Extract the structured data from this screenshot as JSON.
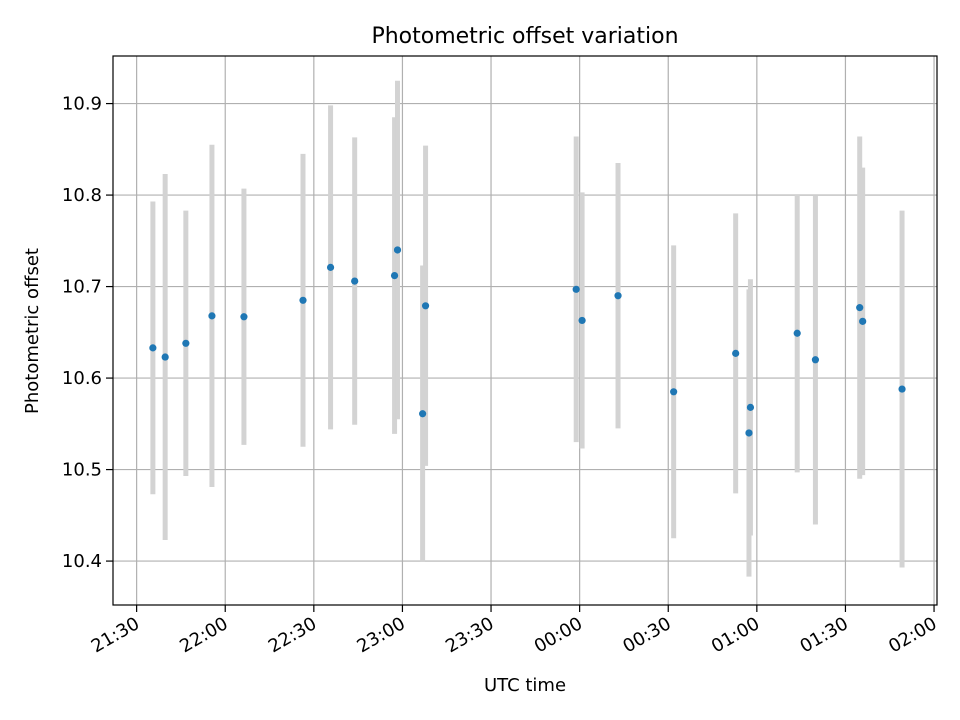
{
  "chart_data": {
    "type": "scatter",
    "title": "Photometric offset variation",
    "xlabel": "UTC time",
    "ylabel": "Photometric offset",
    "grid": true,
    "xlim": [
      "21:22",
      "02:01"
    ],
    "ylim": [
      10.352,
      10.952
    ],
    "x_ticks": [
      "21:30",
      "22:00",
      "22:30",
      "23:00",
      "23:30",
      "00:00",
      "00:30",
      "01:00",
      "01:30",
      "02:00"
    ],
    "y_ticks": [
      "10.4",
      "10.5",
      "10.6",
      "10.7",
      "10.8",
      "10.9"
    ],
    "point_color": "#1f77b4",
    "errorbar_color": "#d3d3d3",
    "points": [
      {
        "x": "21:35:30",
        "y": 10.633,
        "err": 0.16
      },
      {
        "x": "21:39:40",
        "y": 10.623,
        "err": 0.2
      },
      {
        "x": "21:46:40",
        "y": 10.638,
        "err": 0.145
      },
      {
        "x": "21:55:30",
        "y": 10.668,
        "err": 0.187
      },
      {
        "x": "22:06:20",
        "y": 10.667,
        "err": 0.14
      },
      {
        "x": "22:26:20",
        "y": 10.685,
        "err": 0.16
      },
      {
        "x": "22:35:40",
        "y": 10.721,
        "err": 0.177
      },
      {
        "x": "22:43:50",
        "y": 10.706,
        "err": 0.157
      },
      {
        "x": "22:57:20",
        "y": 10.712,
        "err": 0.173
      },
      {
        "x": "22:58:20",
        "y": 10.74,
        "err": 0.185
      },
      {
        "x": "23:06:50",
        "y": 10.561,
        "err": 0.162
      },
      {
        "x": "23:07:50",
        "y": 10.679,
        "err": 0.175
      },
      {
        "x": "23:58:50",
        "y": 10.697,
        "err": 0.167
      },
      {
        "x": "00:00:50",
        "y": 10.663,
        "err": 0.14
      },
      {
        "x": "00:13:00",
        "y": 10.69,
        "err": 0.145
      },
      {
        "x": "00:31:50",
        "y": 10.585,
        "err": 0.16
      },
      {
        "x": "00:52:50",
        "y": 10.627,
        "err": 0.153
      },
      {
        "x": "00:57:20",
        "y": 10.54,
        "err": 0.157
      },
      {
        "x": "00:57:50",
        "y": 10.568,
        "err": 0.14
      },
      {
        "x": "01:13:40",
        "y": 10.649,
        "err": 0.152
      },
      {
        "x": "01:19:50",
        "y": 10.62,
        "err": 0.18
      },
      {
        "x": "01:34:50",
        "y": 10.677,
        "err": 0.187
      },
      {
        "x": "01:35:50",
        "y": 10.662,
        "err": 0.168
      },
      {
        "x": "01:49:10",
        "y": 10.588,
        "err": 0.195
      }
    ]
  }
}
